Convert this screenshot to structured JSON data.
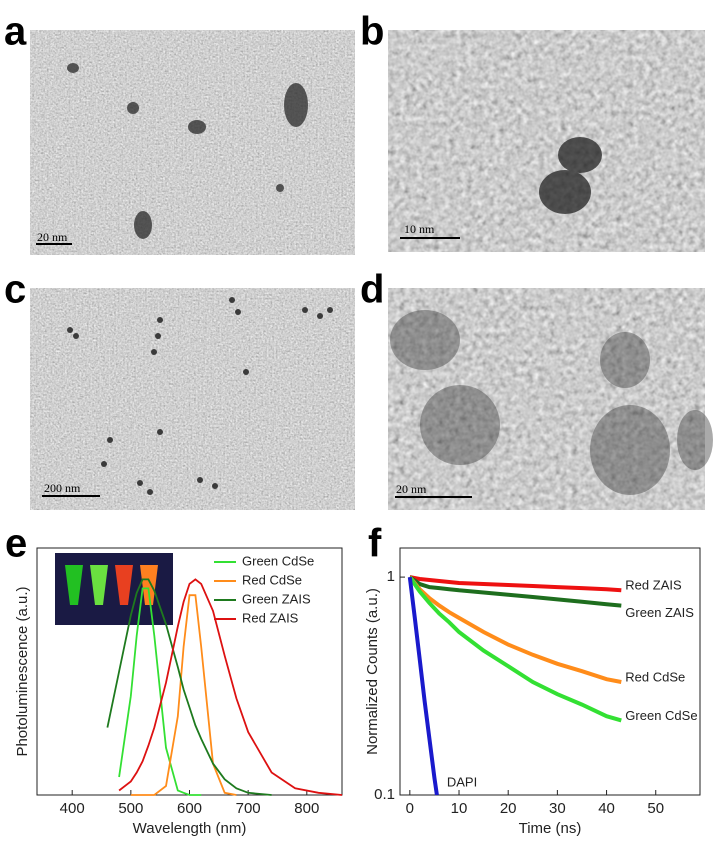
{
  "images": [
    {
      "label": "a",
      "scale_bar": "20 nm"
    },
    {
      "label": "b",
      "scale_bar": "10 nm"
    },
    {
      "label": "c",
      "scale_bar": "200 nm"
    },
    {
      "label": "d",
      "scale_bar": "20 nm"
    }
  ],
  "chart_data": [
    {
      "type": "line",
      "panel": "e",
      "xlabel": "Wavelength (nm)",
      "ylabel": "Photoluminescence (a.u.)",
      "x": [
        460,
        480,
        500,
        510,
        520,
        530,
        540,
        560,
        580,
        590,
        600,
        610,
        620,
        640,
        660,
        680,
        700,
        740,
        780,
        820,
        860
      ],
      "xlim": [
        340,
        860
      ],
      "xticks": [
        400,
        500,
        600,
        700,
        800
      ],
      "ylim": [
        0,
        1.1
      ],
      "legend": "top-right",
      "series": [
        {
          "name": "Green CdSe",
          "color": "#33e033",
          "values": [
            null,
            0.08,
            0.44,
            0.71,
            0.92,
            0.92,
            0.71,
            0.21,
            0.02,
            0.01,
            0,
            0,
            0,
            null,
            null,
            null,
            null,
            null,
            null,
            null,
            null
          ]
        },
        {
          "name": "Red CdSe",
          "color": "#ff8c1a",
          "values": [
            null,
            null,
            0,
            0,
            0,
            0,
            0,
            0.04,
            0.35,
            0.66,
            0.89,
            0.89,
            0.66,
            0.14,
            0.01,
            0,
            null,
            null,
            null,
            null,
            null
          ]
        },
        {
          "name": "Green ZAIS",
          "color": "#1e7a1e",
          "values": [
            0.3,
            0.55,
            0.8,
            0.9,
            0.96,
            0.96,
            0.91,
            0.76,
            0.57,
            0.47,
            0.39,
            0.31,
            0.25,
            0.14,
            0.07,
            0.03,
            0.01,
            0,
            null,
            null,
            null
          ]
        },
        {
          "name": "Red ZAIS",
          "color": "#dd1111",
          "values": [
            null,
            0.02,
            0.06,
            0.1,
            0.15,
            0.22,
            0.3,
            0.5,
            0.75,
            0.86,
            0.94,
            0.96,
            0.94,
            0.82,
            0.62,
            0.43,
            0.28,
            0.1,
            0.03,
            0.01,
            0
          ]
        }
      ]
    },
    {
      "type": "line",
      "panel": "f",
      "xlabel": "Time (ns)",
      "ylabel": "Normalized Counts (a.u.)",
      "xlim": [
        -2,
        59
      ],
      "xticks": [
        0,
        10,
        20,
        30,
        40,
        50
      ],
      "ylim": [
        0.1,
        1.36
      ],
      "yticks": [
        0.1,
        1
      ],
      "log_y": true,
      "series": [
        {
          "name": "Red ZAIS",
          "color": "#ee1111",
          "x": [
            0,
            2,
            4,
            6,
            8,
            10,
            15,
            20,
            25,
            30,
            35,
            40,
            43
          ],
          "values": [
            1,
            0.98,
            0.97,
            0.96,
            0.95,
            0.94,
            0.93,
            0.92,
            0.91,
            0.9,
            0.89,
            0.88,
            0.87
          ]
        },
        {
          "name": "Green ZAIS",
          "color": "#1e6e1e",
          "x": [
            0,
            2,
            4,
            6,
            8,
            10,
            15,
            20,
            25,
            30,
            35,
            40,
            43
          ],
          "values": [
            1,
            0.93,
            0.9,
            0.89,
            0.88,
            0.87,
            0.85,
            0.83,
            0.81,
            0.79,
            0.77,
            0.75,
            0.74
          ]
        },
        {
          "name": "Red CdSe",
          "color": "#ff8c1a",
          "x": [
            0,
            2,
            4,
            6,
            8,
            10,
            15,
            20,
            25,
            30,
            35,
            40,
            43
          ],
          "values": [
            1,
            0.88,
            0.8,
            0.74,
            0.69,
            0.65,
            0.56,
            0.49,
            0.44,
            0.4,
            0.37,
            0.34,
            0.33
          ]
        },
        {
          "name": "Green CdSe",
          "color": "#33e033",
          "x": [
            0,
            2,
            4,
            6,
            8,
            10,
            15,
            20,
            25,
            30,
            35,
            40,
            43
          ],
          "values": [
            1,
            0.86,
            0.76,
            0.68,
            0.62,
            0.56,
            0.46,
            0.39,
            0.33,
            0.29,
            0.26,
            0.23,
            0.22
          ]
        },
        {
          "name": "DAPI",
          "color": "#1a1acc",
          "x": [
            0,
            1,
            2,
            3,
            4,
            5,
            5.5
          ],
          "values": [
            1,
            0.65,
            0.42,
            0.27,
            0.18,
            0.12,
            0.1
          ]
        }
      ]
    }
  ]
}
